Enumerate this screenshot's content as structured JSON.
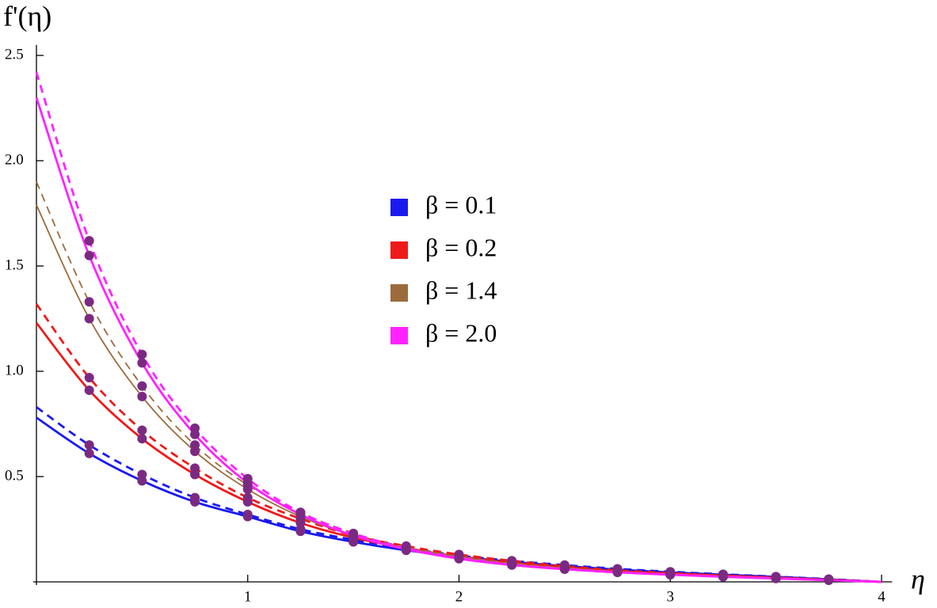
{
  "chart_data": {
    "type": "line",
    "y_label": "f'(η)",
    "x_label": "η",
    "x": [
      0,
      0.25,
      0.5,
      0.75,
      1,
      1.25,
      1.5,
      1.75,
      2,
      2.25,
      2.5,
      2.75,
      3,
      3.25,
      3.5,
      3.75,
      4
    ],
    "series": [
      {
        "name": "β = 0.1",
        "color": "#1a1aee",
        "values": [
          0.78,
          0.61,
          0.48,
          0.38,
          0.31,
          0.24,
          0.19,
          0.15,
          0.12,
          0.095,
          0.075,
          0.058,
          0.045,
          0.034,
          0.024,
          0.012,
          0
        ],
        "dashed_values": [
          0.83,
          0.65,
          0.51,
          0.4,
          0.32,
          0.25,
          0.2,
          0.16,
          0.125,
          0.1,
          0.08,
          0.062,
          0.048,
          0.036,
          0.025,
          0.013,
          0
        ]
      },
      {
        "name": "β = 0.2",
        "color": "#ee1a1a",
        "values": [
          1.23,
          0.91,
          0.68,
          0.51,
          0.38,
          0.28,
          0.21,
          0.16,
          0.12,
          0.09,
          0.07,
          0.05,
          0.04,
          0.03,
          0.02,
          0.01,
          0
        ],
        "dashed_values": [
          1.32,
          0.97,
          0.72,
          0.54,
          0.4,
          0.3,
          0.22,
          0.17,
          0.13,
          0.1,
          0.075,
          0.055,
          0.042,
          0.03,
          0.02,
          0.01,
          0
        ]
      },
      {
        "name": "β = 1.4",
        "color": "#9c6b3c",
        "values": [
          1.79,
          1.25,
          0.88,
          0.62,
          0.44,
          0.31,
          0.22,
          0.16,
          0.12,
          0.085,
          0.065,
          0.048,
          0.036,
          0.026,
          0.018,
          0.009,
          0
        ],
        "dashed_values": [
          1.9,
          1.33,
          0.93,
          0.65,
          0.46,
          0.33,
          0.23,
          0.165,
          0.12,
          0.088,
          0.066,
          0.049,
          0.037,
          0.027,
          0.018,
          0.009,
          0
        ]
      },
      {
        "name": "β = 2.0",
        "color": "#ff22ff",
        "values": [
          2.3,
          1.55,
          1.04,
          0.7,
          0.47,
          0.32,
          0.22,
          0.155,
          0.11,
          0.08,
          0.06,
          0.045,
          0.034,
          0.024,
          0.016,
          0.008,
          0
        ],
        "dashed_values": [
          2.42,
          1.62,
          1.08,
          0.73,
          0.49,
          0.33,
          0.23,
          0.16,
          0.115,
          0.082,
          0.062,
          0.046,
          0.035,
          0.025,
          0.017,
          0.008,
          0
        ]
      }
    ],
    "marker_color": "#7b2a82",
    "xlim": [
      0,
      4.05
    ],
    "xticks": [
      1,
      2,
      3,
      4
    ],
    "ylim": [
      0,
      2.55
    ],
    "yticks": [
      0.5,
      {
        "value": 1,
        "label": "1.0"
      },
      1.5,
      {
        "value": 2,
        "label": "2.0"
      },
      2.5
    ],
    "grid": false
  }
}
